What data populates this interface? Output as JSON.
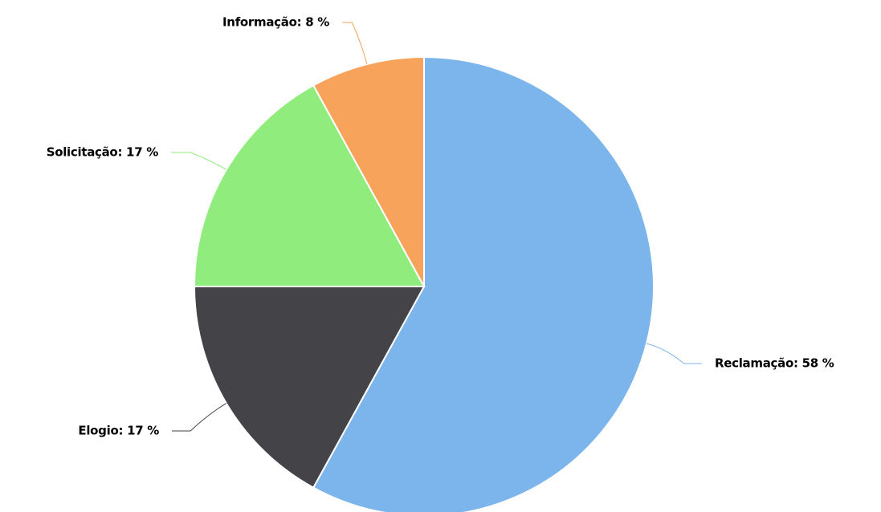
{
  "chart_data": {
    "type": "pie",
    "values": [
      58,
      17,
      17,
      8
    ],
    "value_labels": [
      "Reclamação: 58 %",
      "Elogio: 17 %",
      "Solicitação: 17 %",
      "Informação: 8 %"
    ],
    "colors": [
      "#7cb5ec",
      "#434348",
      "#90ed7d",
      "#f7a35c"
    ]
  }
}
